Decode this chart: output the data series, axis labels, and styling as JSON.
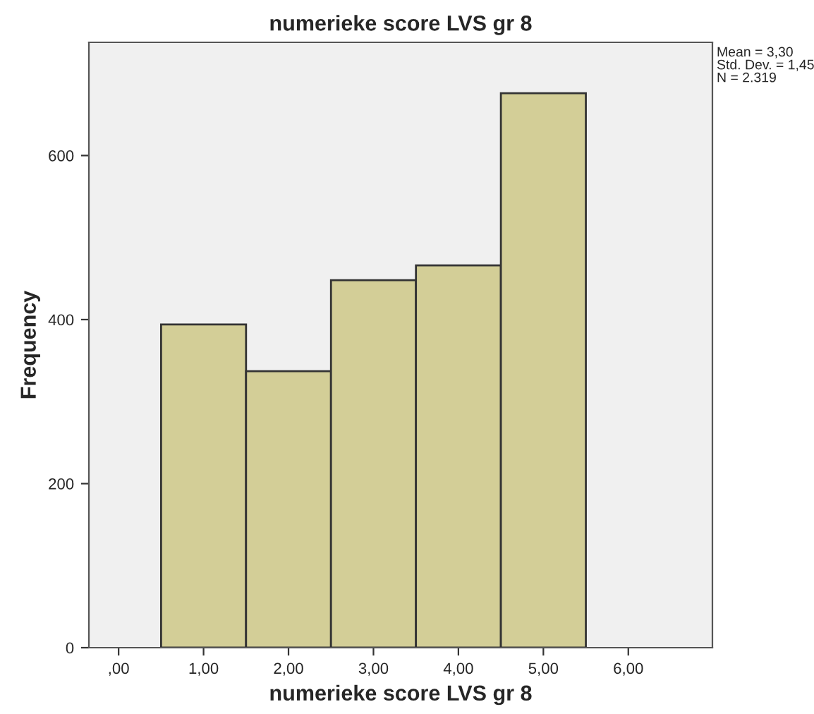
{
  "chart_data": {
    "type": "histogram",
    "title": "numerieke score LVS gr 8",
    "xlabel": "numerieke score LVS gr 8",
    "ylabel": "Frequency",
    "bins": [
      0.5,
      1.5,
      2.5,
      3.5,
      4.5,
      5.5
    ],
    "values": [
      394,
      337,
      448,
      466,
      676
    ],
    "color": "#d3ce97",
    "xlim": [
      -0.35,
      6.99
    ],
    "ylim": [
      0,
      738
    ],
    "xticks": [
      {
        "value": 0,
        "label": ",00"
      },
      {
        "value": 1,
        "label": "1,00"
      },
      {
        "value": 2,
        "label": "2,00"
      },
      {
        "value": 3,
        "label": "3,00"
      },
      {
        "value": 4,
        "label": "4,00"
      },
      {
        "value": 5,
        "label": "5,00"
      },
      {
        "value": 6,
        "label": "6,00"
      }
    ],
    "yticks": [
      0,
      200,
      400,
      600
    ],
    "annotations": [
      "Mean = 3,30\nStd. Dev. = 1,45\nN = 2.319"
    ],
    "grid": false,
    "legend": false
  }
}
